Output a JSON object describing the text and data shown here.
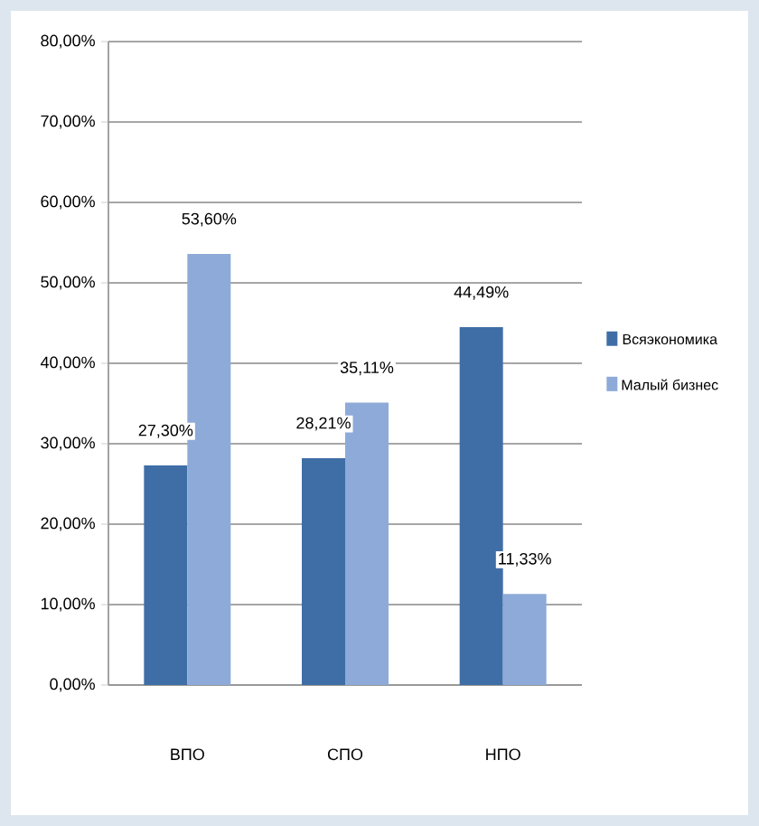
{
  "chart_data": {
    "type": "bar",
    "categories": [
      "ВПО",
      "СПО",
      "НПО"
    ],
    "series": [
      {
        "name": "Всяэкономика",
        "color": "#3f6ea6",
        "values": [
          27.3,
          28.21,
          44.49
        ],
        "value_labels": [
          "27,30%",
          "28,21%",
          "44,49%"
        ]
      },
      {
        "name": "Малый бизнес",
        "color": "#8eaad8",
        "values": [
          53.6,
          35.11,
          11.33
        ],
        "value_labels": [
          "53,60%",
          "35,11%",
          "11,33%"
        ]
      }
    ],
    "ylim": [
      0,
      80
    ],
    "yticks": [
      {
        "value": 0,
        "label": "0,00%"
      },
      {
        "value": 10,
        "label": "10,00%"
      },
      {
        "value": 20,
        "label": "20,00%"
      },
      {
        "value": 30,
        "label": "30,00%"
      },
      {
        "value": 40,
        "label": "40,00%"
      },
      {
        "value": 50,
        "label": "50,00%"
      },
      {
        "value": 60,
        "label": "60,00%"
      },
      {
        "value": 70,
        "label": "70,00%"
      },
      {
        "value": 80,
        "label": "80,00%"
      }
    ],
    "grid": "y",
    "legend": "right"
  }
}
